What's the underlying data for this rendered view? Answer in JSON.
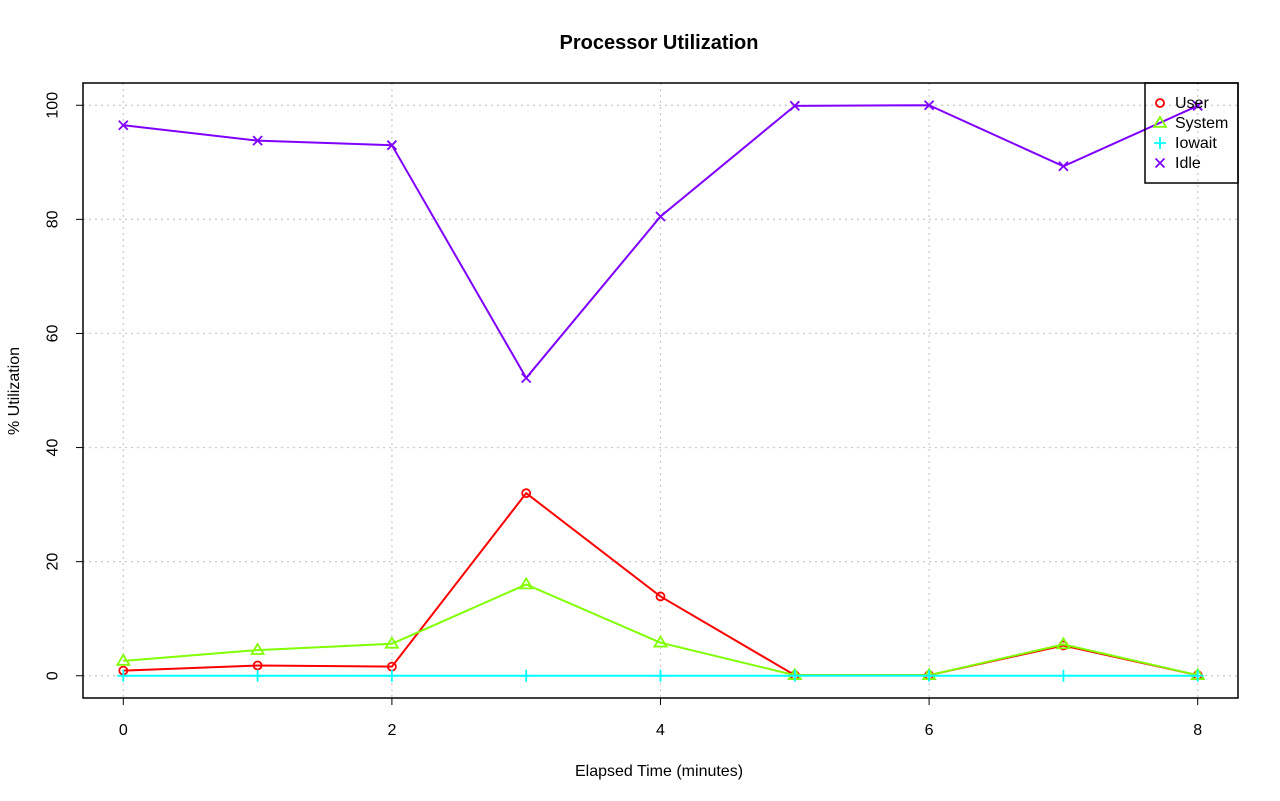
{
  "chart_data": {
    "type": "line",
    "title": "Processor Utilization",
    "xlabel": "Elapsed Time (minutes)",
    "ylabel": "% Utilization",
    "xlim": [
      -0.3,
      8.3
    ],
    "ylim": [
      -3.9,
      103.9
    ],
    "xticks": [
      0,
      2,
      4,
      6,
      8
    ],
    "yticks": [
      0,
      20,
      40,
      60,
      80,
      100
    ],
    "grid": true,
    "legend_position": "top-right",
    "x": [
      0,
      1,
      2,
      3,
      4,
      5,
      6,
      7,
      8
    ],
    "series": [
      {
        "name": "User",
        "marker": "circle",
        "color": "#ff0000",
        "values": [
          0.9,
          1.8,
          1.6,
          32.0,
          13.9,
          0.1,
          0.1,
          5.3,
          0.1
        ]
      },
      {
        "name": "System",
        "marker": "triangle",
        "color": "#80ff00",
        "values": [
          2.6,
          4.5,
          5.6,
          16.0,
          5.8,
          0.1,
          0.1,
          5.5,
          0.1
        ]
      },
      {
        "name": "Iowait",
        "marker": "plus",
        "color": "#00ffff",
        "values": [
          0.0,
          0.0,
          0.0,
          0.0,
          0.0,
          0.0,
          0.0,
          0.0,
          0.0
        ]
      },
      {
        "name": "Idle",
        "marker": "cross",
        "color": "#8000ff",
        "values": [
          96.5,
          93.8,
          93.0,
          52.2,
          80.5,
          99.9,
          100.0,
          89.3,
          99.9
        ]
      }
    ]
  }
}
